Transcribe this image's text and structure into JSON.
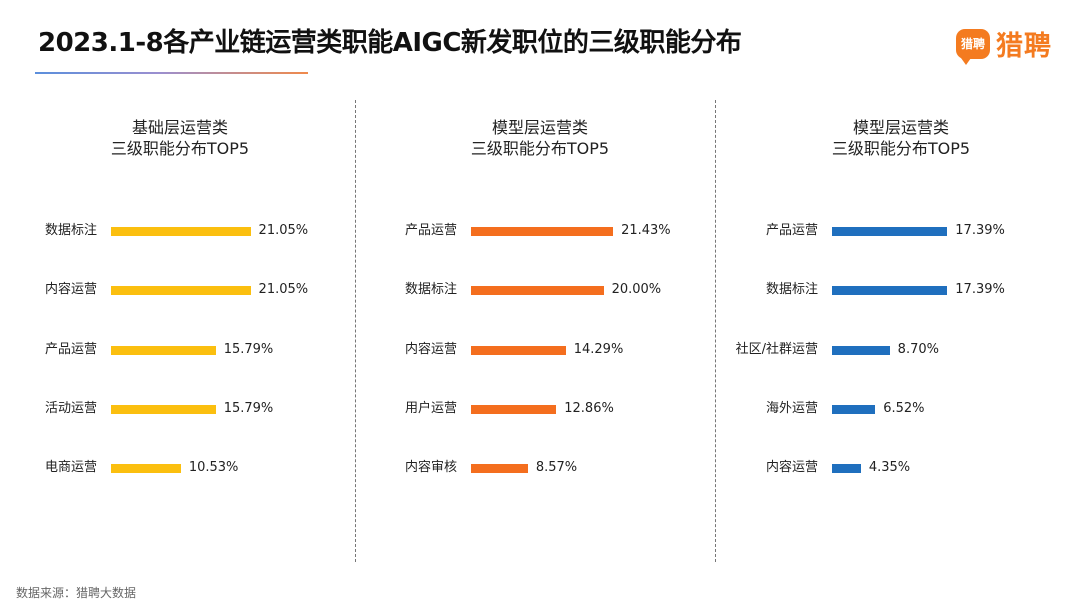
{
  "title": "2023.1-8各产业链运营类职能AIGC新发职位的三级职能分布",
  "logo": {
    "badge": "猎聘",
    "text": "猎聘"
  },
  "source": "数据来源：猎聘大数据",
  "colors": {
    "panel1": "#fbbf0f",
    "panel2": "#f46e1e",
    "panel3": "#1f6fbe"
  },
  "chart_data": [
    {
      "type": "bar",
      "orientation": "horizontal",
      "title_line1": "基础层运营类",
      "title_line2": "三级职能分布TOP5",
      "categories": [
        "数据标注",
        "内容运营",
        "产品运营",
        "活动运营",
        "电商运营"
      ],
      "values": [
        21.05,
        21.05,
        15.79,
        15.79,
        10.53
      ],
      "value_labels": [
        "21.05%",
        "21.05%",
        "15.79%",
        "15.79%",
        "10.53%"
      ],
      "unit": "%",
      "color": "#fbbf0f"
    },
    {
      "type": "bar",
      "orientation": "horizontal",
      "title_line1": "模型层运营类",
      "title_line2": "三级职能分布TOP5",
      "categories": [
        "产品运营",
        "数据标注",
        "内容运营",
        "用户运营",
        "内容审核"
      ],
      "values": [
        21.43,
        20.0,
        14.29,
        12.86,
        8.57
      ],
      "value_labels": [
        "21.43%",
        "20.00%",
        "14.29%",
        "12.86%",
        "8.57%"
      ],
      "unit": "%",
      "color": "#f46e1e"
    },
    {
      "type": "bar",
      "orientation": "horizontal",
      "title_line1": "模型层运营类",
      "title_line2": "三级职能分布TOP5",
      "categories": [
        "产品运营",
        "数据标注",
        "社区/社群运营",
        "海外运营",
        "内容运营"
      ],
      "values": [
        17.39,
        17.39,
        8.7,
        6.52,
        4.35
      ],
      "value_labels": [
        "17.39%",
        "17.39%",
        "8.70%",
        "6.52%",
        "4.35%"
      ],
      "unit": "%",
      "color": "#1f6fbe"
    }
  ]
}
